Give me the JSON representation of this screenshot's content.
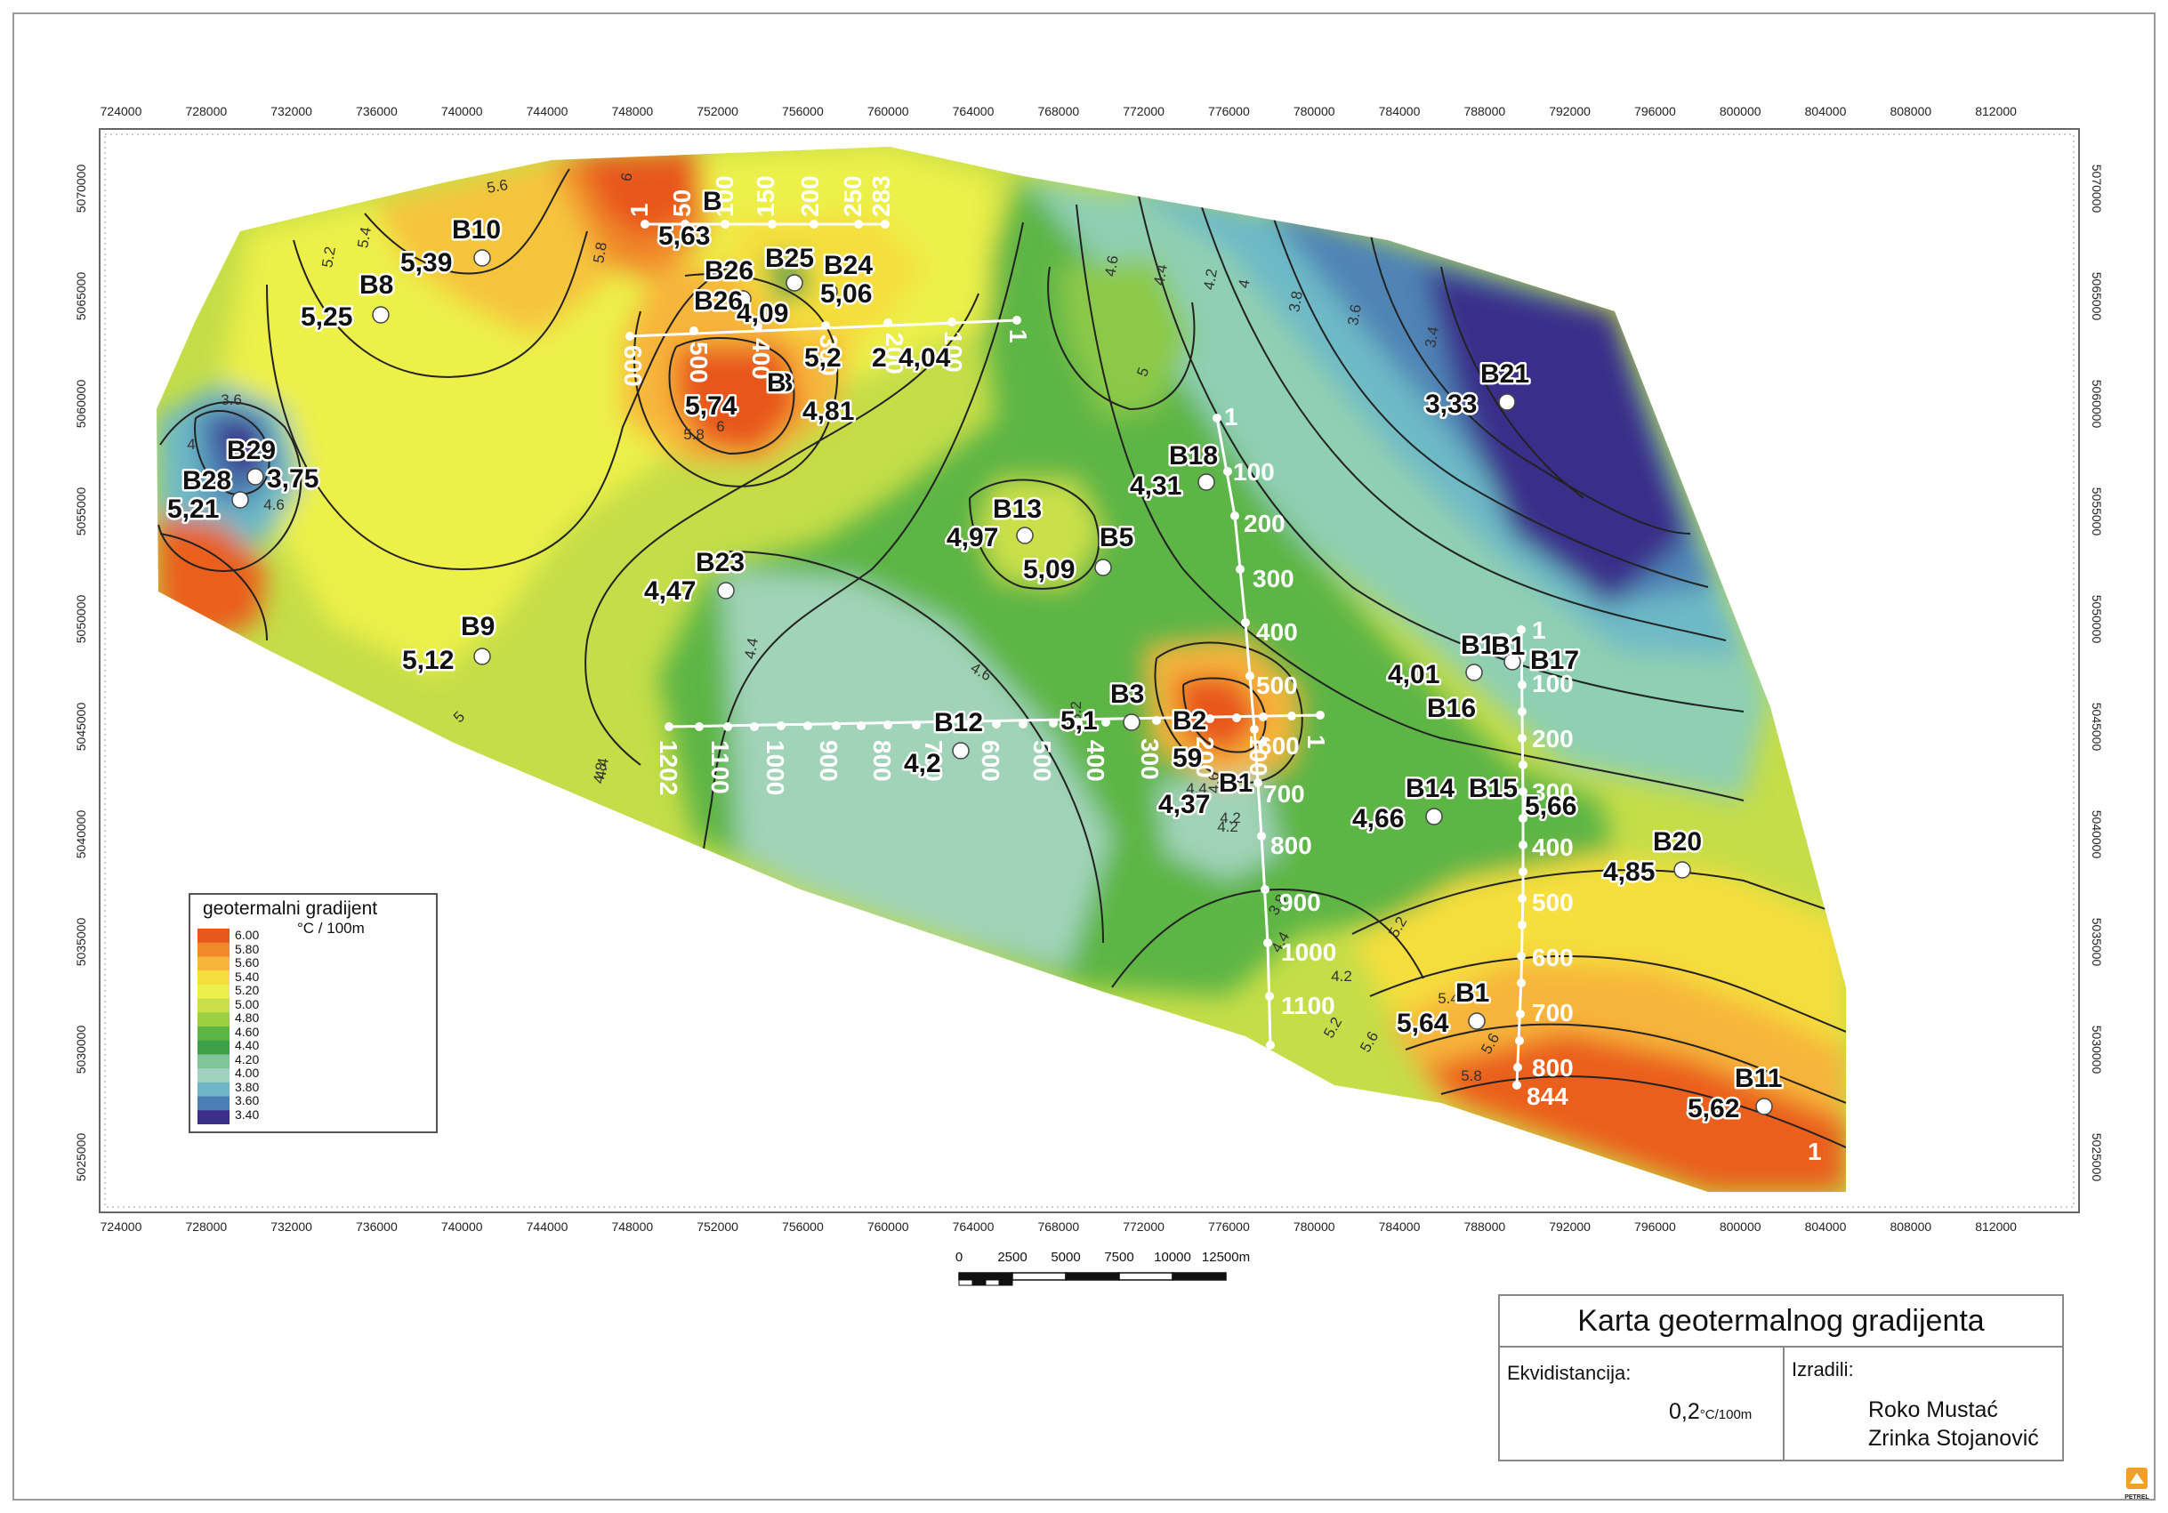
{
  "map": {
    "x_ticks": [
      "724000",
      "728000",
      "732000",
      "736000",
      "740000",
      "744000",
      "748000",
      "752000",
      "756000",
      "760000",
      "764000",
      "768000",
      "772000",
      "776000",
      "780000",
      "784000",
      "788000",
      "792000",
      "796000",
      "800000",
      "804000",
      "808000",
      "812000"
    ],
    "y_ticks": [
      "5070000",
      "5065000",
      "5060000",
      "5055000",
      "5050000",
      "5045000",
      "5040000",
      "5035000",
      "5030000",
      "5025000"
    ],
    "contour_labels": [
      "5.6",
      "5.4",
      "5.2",
      "5.8",
      "6",
      "4.6",
      "4.4",
      "4.2",
      "4",
      "3.8",
      "3.6",
      "3.4",
      "3.6",
      "4",
      "4.6",
      "5.8",
      "6",
      "5",
      "4.4",
      "4.6",
      "4.4",
      "4.8",
      "5",
      "5.2",
      "4.2",
      "4.6",
      "4.4",
      "4.2",
      "4.2",
      "5.4",
      "5.6",
      "5.8",
      "5.2",
      "3.8",
      "4.4",
      "5.6",
      "5.2"
    ],
    "wells": [
      {
        "name": "B10",
        "value": "5,39"
      },
      {
        "name": "B8",
        "value": "5,25"
      },
      {
        "name": "B29",
        "value": "3,75"
      },
      {
        "name": "B28",
        "value": "5,21"
      },
      {
        "name": "B9",
        "value": "5,12"
      },
      {
        "name": "B23",
        "value": "4,47"
      },
      {
        "name": "B13",
        "value": "4,97"
      },
      {
        "name": "B5",
        "value": "5,09"
      },
      {
        "name": "B18",
        "value": "4,31"
      },
      {
        "name": "B21",
        "value": "3,33"
      },
      {
        "name": "B16",
        "value": "4,01"
      },
      {
        "name": "B17",
        "value": ""
      },
      {
        "name": "B14",
        "value": "4,66"
      },
      {
        "name": "B20",
        "value": "4,85"
      },
      {
        "name": "B1",
        "value": "5,64"
      },
      {
        "name": "B11",
        "value": "5,62"
      },
      {
        "name": "B3",
        "value": ""
      },
      {
        "name": "B12",
        "value": ""
      },
      {
        "name": "B26",
        "value": ""
      },
      {
        "name": "B25",
        "value": ""
      },
      {
        "name": "B24",
        "value": "5,06"
      }
    ],
    "partial_texts": [
      "B",
      "5,63",
      "4,09",
      "B26",
      "B",
      "5,2",
      "2",
      "4,04",
      "5,74",
      "B",
      "4,81",
      "4,2",
      "5,1",
      "59",
      "B2",
      "4,37",
      "B1",
      "B15",
      "B1",
      "5,66",
      "B16"
    ],
    "profile_labels": {
      "p1": [
        "1",
        "50",
        "100",
        "150",
        "200",
        "250",
        "283"
      ],
      "p2": [
        "600",
        "500",
        "400",
        "300",
        "200",
        "100",
        "1"
      ],
      "p3": [
        "1202",
        "1100",
        "1000",
        "900",
        "800",
        "700",
        "600",
        "500",
        "400",
        "300",
        "200",
        "100",
        "1"
      ],
      "p4": [
        "1",
        "100",
        "200",
        "300",
        "400",
        "500",
        "600",
        "700",
        "800",
        "900",
        "1000",
        "1100"
      ],
      "p5": [
        "1",
        "100",
        "200",
        "300",
        "400",
        "500",
        "600",
        "700",
        "800",
        "844"
      ],
      "p6": [
        "1"
      ]
    }
  },
  "legend": {
    "title": "geotermalni gradijent",
    "unit": "°C / 100m",
    "labels": [
      "6.00",
      "5.80",
      "5.60",
      "5.40",
      "5.20",
      "5.00",
      "4.80",
      "4.60",
      "4.40",
      "4.20",
      "4.00",
      "3.80",
      "3.60",
      "3.40"
    ],
    "colors": [
      "#e8571c",
      "#f08a2a",
      "#f7b53a",
      "#f5de3c",
      "#ecf04a",
      "#c9e04a",
      "#9ccf42",
      "#5cb545",
      "#3f9f48",
      "#7fc49a",
      "#9fd3bf",
      "#6fb7c8",
      "#4b7fb4",
      "#3b2f8a"
    ]
  },
  "scale": {
    "labels": [
      "0",
      "2500",
      "5000",
      "7500",
      "10000",
      "12500m"
    ]
  },
  "titlebox": {
    "title": "Karta geotermalnog gradijenta",
    "ekv_label": "Ekvidistancija:",
    "ekv_value": "0,2",
    "ekv_unit": "°C/100m",
    "izradili_label": "Izradili:",
    "author1": "Roko Mustać",
    "author2": "Zrinka Stojanović"
  },
  "logo_text": "PETREL"
}
